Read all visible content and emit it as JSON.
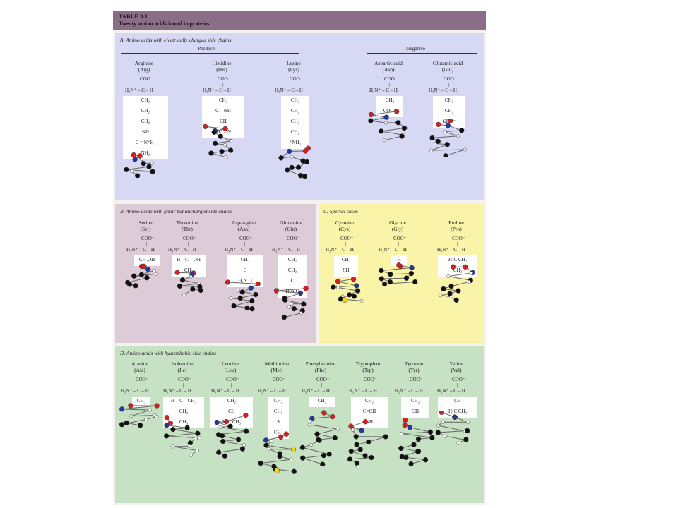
{
  "table": {
    "label": "TABLE 3.1",
    "title": "Twenty amino acids found in proteins"
  },
  "sections": {
    "a": {
      "title": "A.  Amino acids with electrically charged side chains",
      "positive": "Positive",
      "negative": "Negative"
    },
    "b": {
      "title": "B.  Amino acids with polar but uncharged side chains"
    },
    "c": {
      "title": "C.  Special cases"
    },
    "d": {
      "title": "D.  Amino acids with hydrophobic side chains"
    }
  },
  "backbone": {
    "coo": "COO⁻",
    "line": "H₃N⁺ – C – H"
  },
  "amino_acids": [
    {
      "name": "Arginine",
      "abbr": "(Arg)",
      "side": [
        "CH₂",
        "CH₂",
        "CH₂",
        "NH",
        "C = N⁺H₂",
        "NH₂"
      ]
    },
    {
      "name": "Histidine",
      "abbr": "(His)",
      "side": [
        "CH₂",
        "C – NH",
        "CH",
        "HC = N"
      ]
    },
    {
      "name": "Lysine",
      "abbr": "(Lys)",
      "side": [
        "CH₂",
        "CH₂",
        "CH₂",
        "CH₂",
        "⁺NH₃"
      ]
    },
    {
      "name": "Aspartic acid",
      "abbr": "(Asp)",
      "side": [
        "CH₂",
        "COO⁻"
      ]
    },
    {
      "name": "Glutamic acid",
      "abbr": "(Glu)",
      "side": [
        "CH₂",
        "CH₂",
        "COO⁻"
      ]
    },
    {
      "name": "Serine",
      "abbr": "(Ser)",
      "side": [
        "CH₂OH"
      ]
    },
    {
      "name": "Threonine",
      "abbr": "(Thr)",
      "side": [
        "H – C – OH",
        "CH₃"
      ]
    },
    {
      "name": "Asparagine",
      "abbr": "(Asn)",
      "side": [
        "CH₂",
        "C",
        "H₂N   O"
      ]
    },
    {
      "name": "Glutamine",
      "abbr": "(Gln)",
      "side": [
        "CH₂",
        "CH₂",
        "C",
        "H₂N   O"
      ]
    },
    {
      "name": "Cysteine",
      "abbr": "(Cys)",
      "side": [
        "CH₂",
        "SH"
      ]
    },
    {
      "name": "Glycine",
      "abbr": "(Gly)",
      "side": [
        "H"
      ]
    },
    {
      "name": "Proline",
      "abbr": "(Pro)",
      "side": [
        "H₂C   CH₂",
        "CH₂"
      ]
    },
    {
      "name": "Alanine",
      "abbr": "(Ala)",
      "side": [
        "CH₃"
      ]
    },
    {
      "name": "Isoleucine",
      "abbr": "(Ile)",
      "side": [
        "H – C – CH₃",
        "CH₂",
        "CH₃"
      ]
    },
    {
      "name": "Leucine",
      "abbr": "(Leu)",
      "side": [
        "CH₂",
        "CH",
        "H₃C   CH₃"
      ]
    },
    {
      "name": "Methionine",
      "abbr": "(Met)",
      "side": [
        "CH₂",
        "CH₂",
        "S",
        "CH₃"
      ]
    },
    {
      "name": "Phenylalanine",
      "abbr": "(Phe)",
      "side": [
        "CH₂"
      ]
    },
    {
      "name": "Tryptophan",
      "abbr": "(Trp)",
      "side": [
        "CH₂",
        "C=CH",
        "NH"
      ]
    },
    {
      "name": "Tyrosine",
      "abbr": "(Tyr)",
      "side": [
        "CH₂",
        "OH"
      ]
    },
    {
      "name": "Valine",
      "abbr": "(Val)",
      "side": [
        "CH",
        "H₃C   CH₃"
      ]
    }
  ],
  "colors": {
    "header": "#8a6d86",
    "panel_a": "#d7d8f3",
    "panel_b": "#ddcbd8",
    "panel_c": "#f9f4a8",
    "panel_d": "#c6e1c3",
    "carbon": "#111111",
    "oxygen": "#d81e1e",
    "nitrogen": "#1f3a9c",
    "hydrogen": "#ffffff",
    "sulfur": "#f2d21b"
  }
}
